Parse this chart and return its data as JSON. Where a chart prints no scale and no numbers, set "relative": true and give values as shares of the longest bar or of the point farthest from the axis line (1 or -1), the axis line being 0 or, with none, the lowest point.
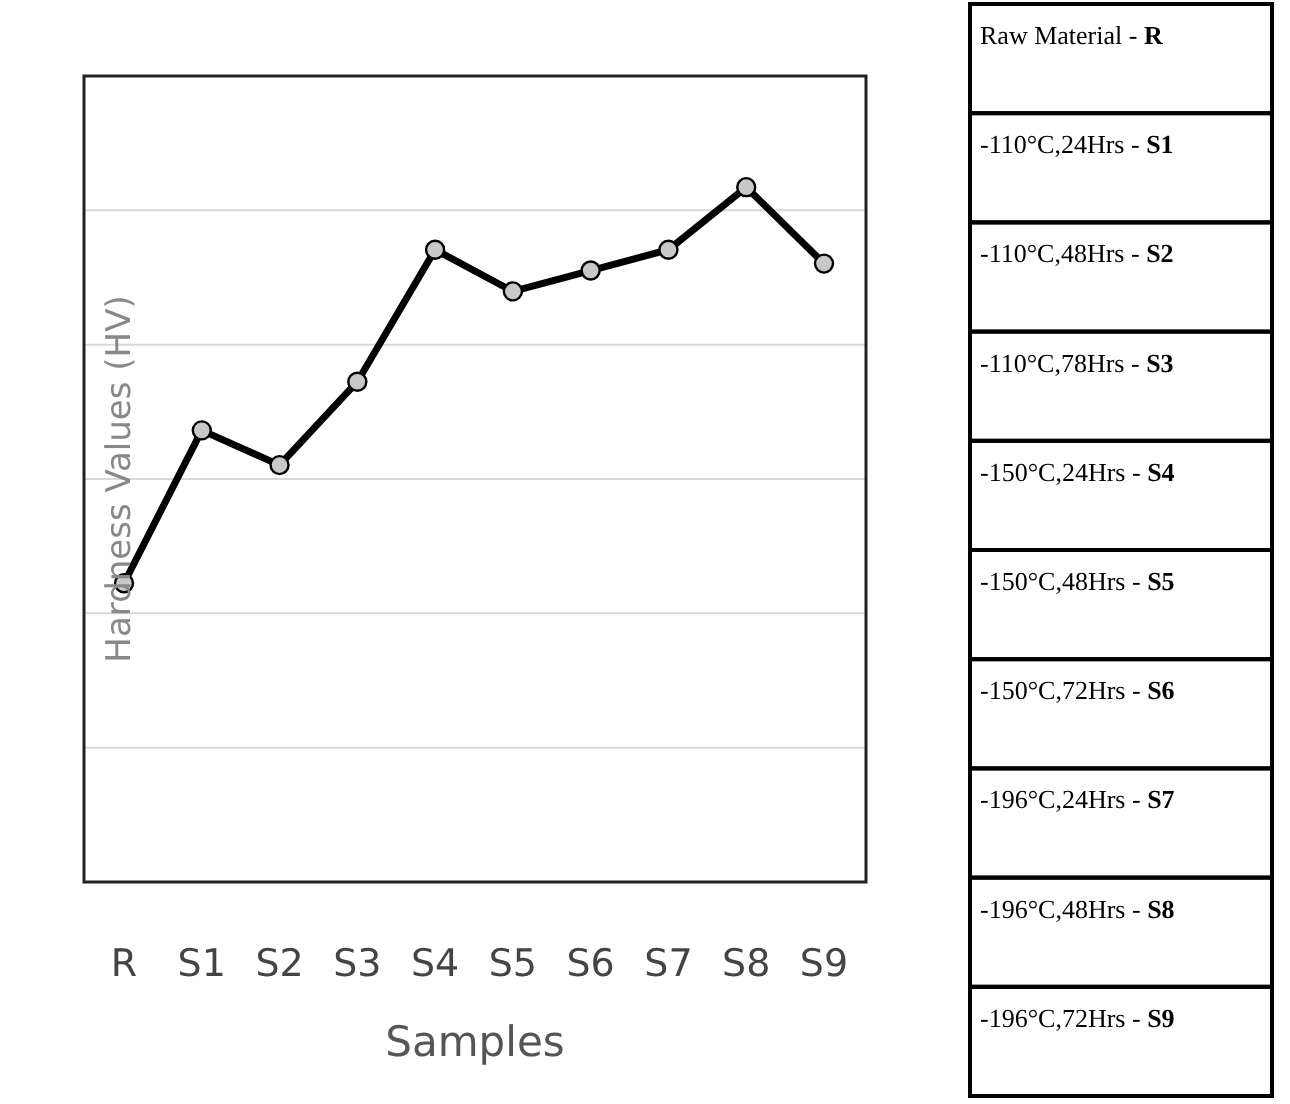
{
  "chart_data": [
    {
      "type": "line",
      "xlabel": "Samples",
      "ylabel": "Hardness Values (HV)",
      "categories": [
        "R",
        "S1",
        "S2",
        "S3",
        "S4",
        "S5",
        "S6",
        "S7",
        "S8",
        "S9"
      ],
      "series": [
        {
          "color": "#000000",
          "values": [
            0.43,
            0.65,
            0.6,
            0.72,
            0.91,
            0.85,
            0.88,
            0.91,
            1,
            0.89
          ]
        }
      ],
      "relative": true,
      "grid": "y",
      "marker": "circle",
      "line_style": "solid"
    },
    {
      "type": "other",
      "annotations": [
        "Raw Material - R",
        "-110°C,24Hrs - S1",
        "-110°C,48Hrs - S2",
        "-110°C,78Hrs - S3",
        "-150°C,24Hrs - S4",
        "-150°C,48Hrs - S5",
        "-150°C,72Hrs - S6",
        "-196°C,24Hrs - S7",
        "-196°C,48Hrs - S8",
        "-196°C,72Hrs - S9"
      ]
    }
  ]
}
